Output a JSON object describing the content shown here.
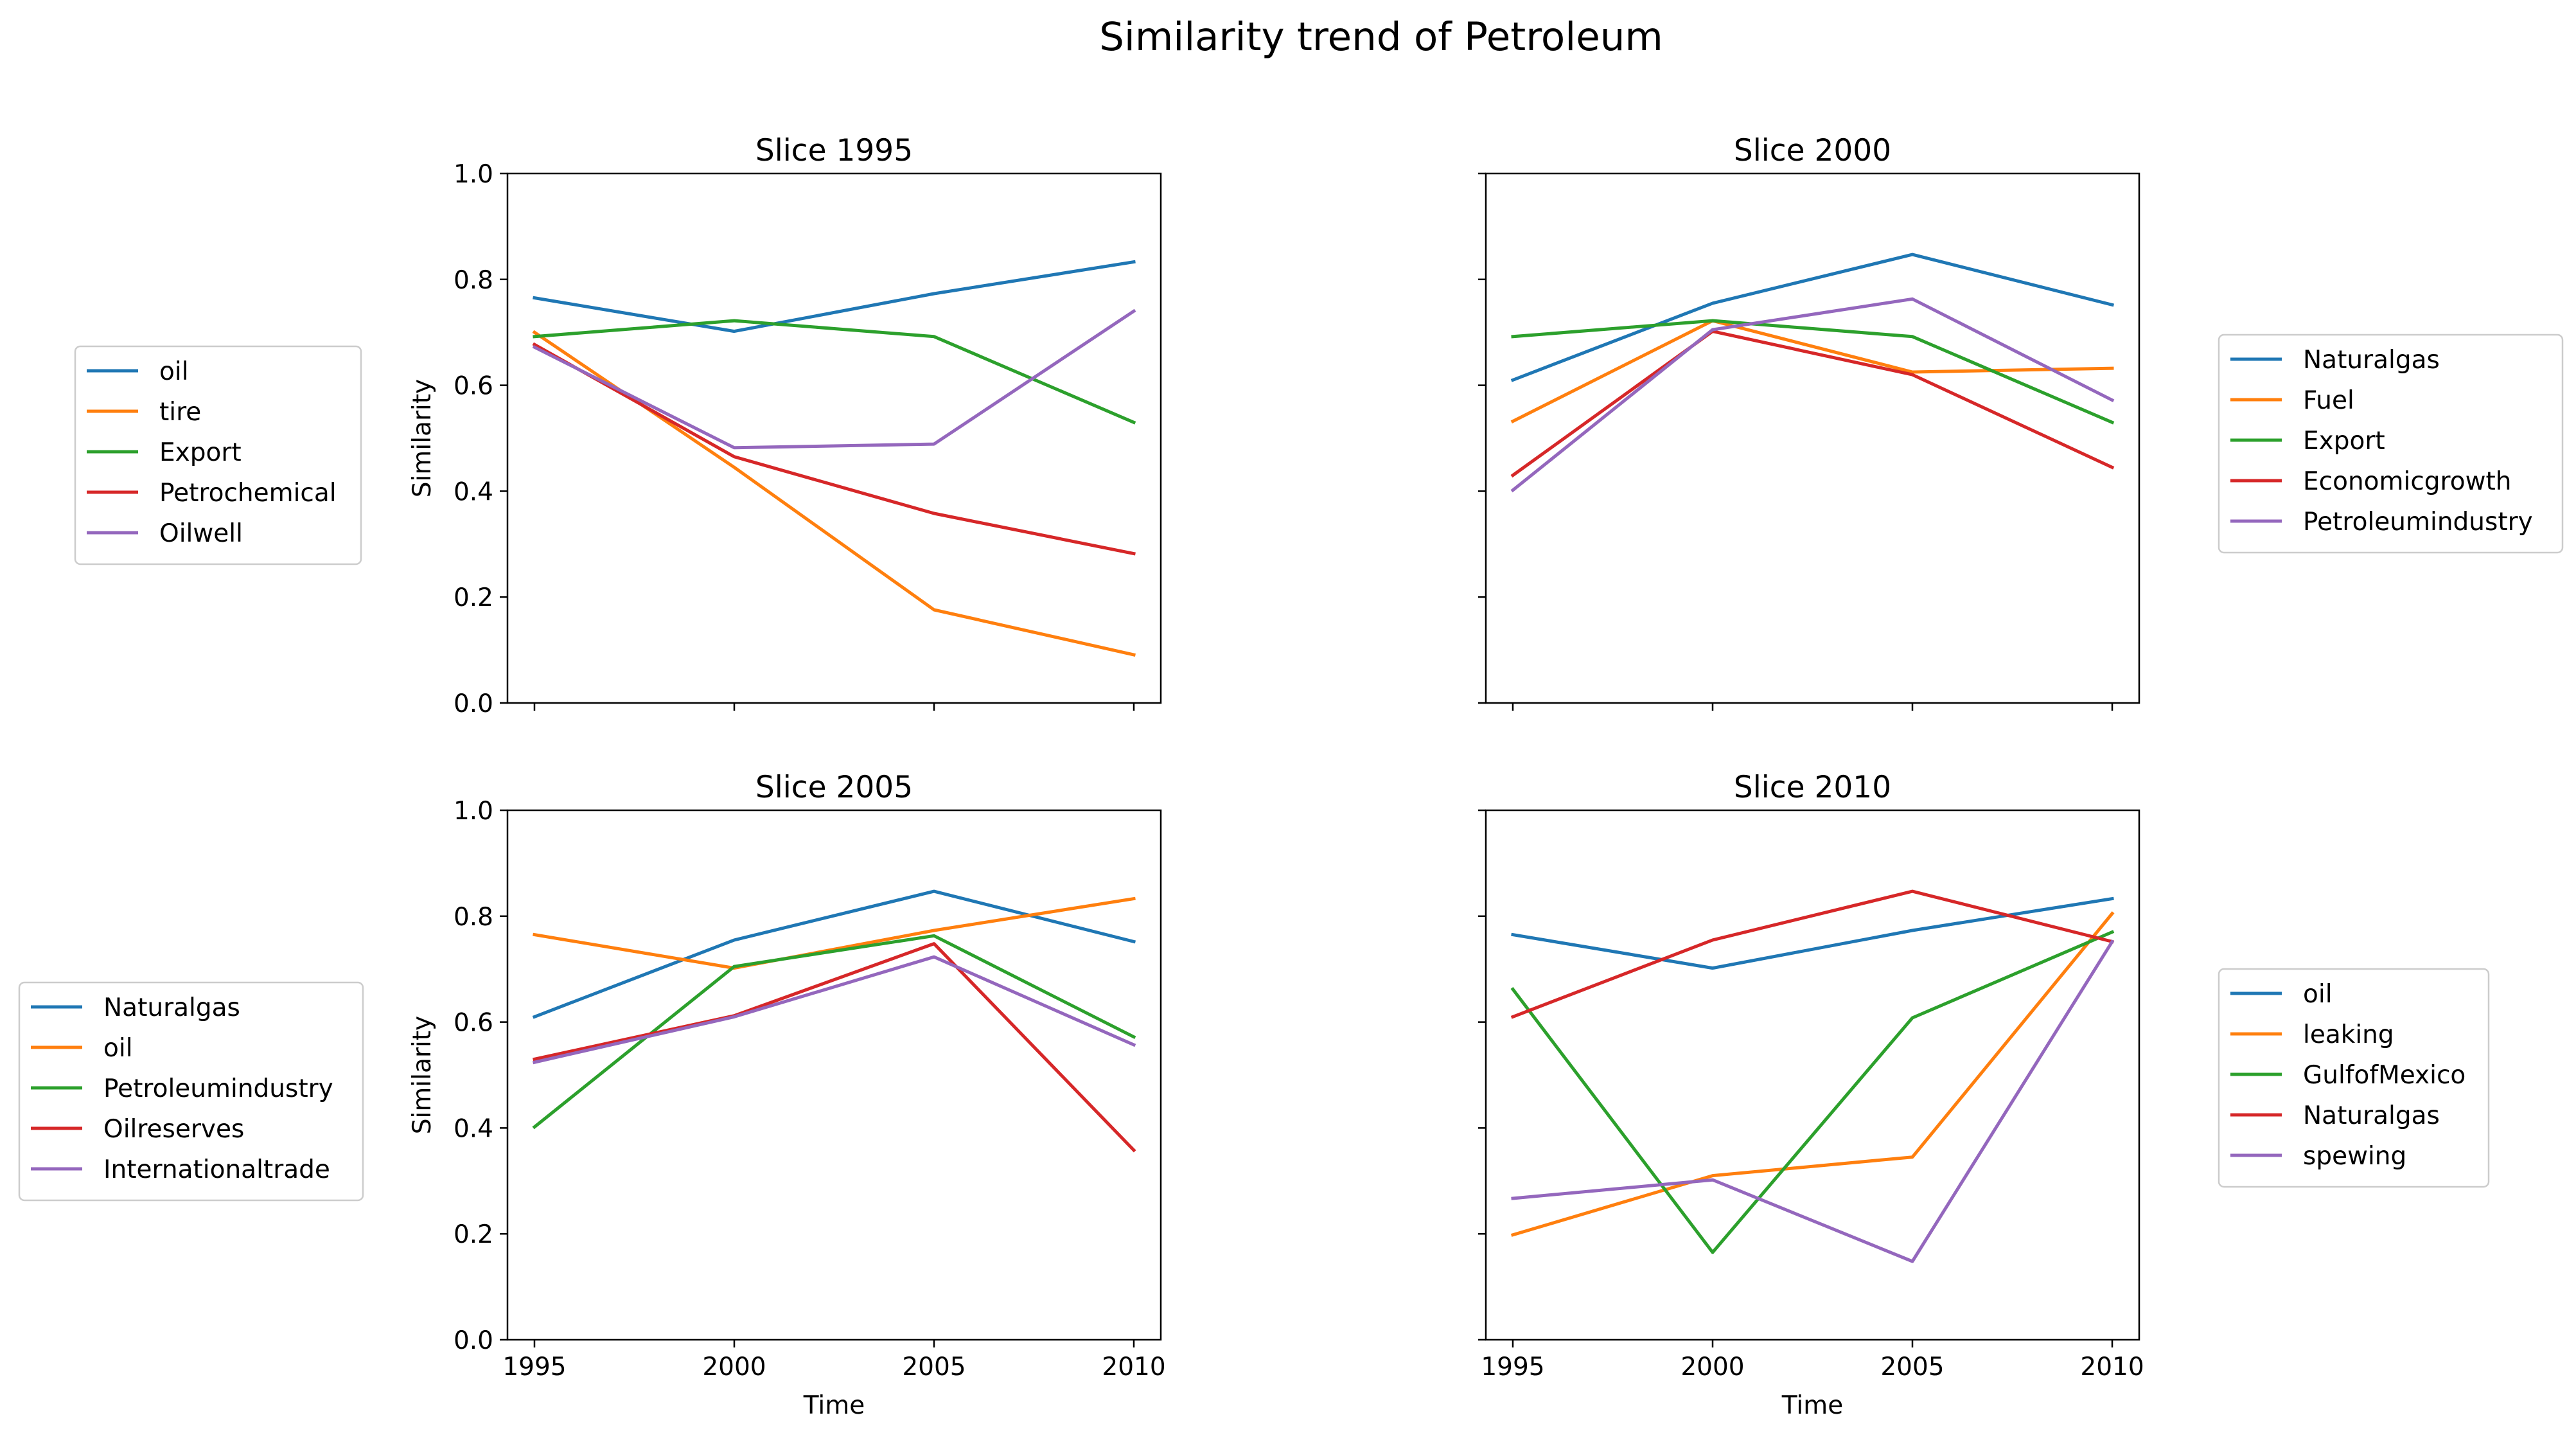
{
  "title": "Similarity trend of Petroleum",
  "colors": [
    "#1f77b4",
    "#ff7f0e",
    "#2ca02c",
    "#d62728",
    "#9467bd"
  ],
  "chart_data": [
    {
      "type": "line",
      "title": "Slice 1995",
      "xlabel": "",
      "ylabel": "Similarity",
      "x": [
        1995,
        2000,
        2005,
        2010
      ],
      "xticks": [
        "1995",
        "2000",
        "2005",
        "2010"
      ],
      "show_xticklabels": false,
      "show_yticklabels": true,
      "yticks": [
        "0.0",
        "0.2",
        "0.4",
        "0.6",
        "0.8",
        "1.0"
      ],
      "ylim": [
        0,
        1
      ],
      "legend_position": "left",
      "series": [
        {
          "name": "oil",
          "values": [
            0.765,
            0.702,
            0.773,
            0.833
          ]
        },
        {
          "name": "tire",
          "values": [
            0.7,
            0.445,
            0.176,
            0.091
          ]
        },
        {
          "name": "Export",
          "values": [
            0.692,
            0.722,
            0.692,
            0.53
          ]
        },
        {
          "name": "Petrochemical",
          "values": [
            0.677,
            0.465,
            0.358,
            0.282
          ]
        },
        {
          "name": "Oilwell",
          "values": [
            0.672,
            0.482,
            0.489,
            0.74
          ]
        }
      ]
    },
    {
      "type": "line",
      "title": "Slice 2000",
      "xlabel": "",
      "ylabel": "",
      "x": [
        1995,
        2000,
        2005,
        2010
      ],
      "xticks": [
        "1995",
        "2000",
        "2005",
        "2010"
      ],
      "show_xticklabels": false,
      "show_yticklabels": false,
      "yticks": [
        "0.0",
        "0.2",
        "0.4",
        "0.6",
        "0.8",
        "1.0"
      ],
      "ylim": [
        0,
        1
      ],
      "legend_position": "right",
      "series": [
        {
          "name": "Naturalgas",
          "values": [
            0.61,
            0.755,
            0.847,
            0.752
          ]
        },
        {
          "name": "Fuel",
          "values": [
            0.532,
            0.722,
            0.625,
            0.632
          ]
        },
        {
          "name": "Export",
          "values": [
            0.692,
            0.722,
            0.692,
            0.53
          ]
        },
        {
          "name": "Economicgrowth",
          "values": [
            0.43,
            0.702,
            0.62,
            0.445
          ]
        },
        {
          "name": "Petroleumindustry",
          "values": [
            0.402,
            0.705,
            0.763,
            0.572
          ]
        }
      ]
    },
    {
      "type": "line",
      "title": "Slice 2005",
      "xlabel": "Time",
      "ylabel": "Similarity",
      "x": [
        1995,
        2000,
        2005,
        2010
      ],
      "xticks": [
        "1995",
        "2000",
        "2005",
        "2010"
      ],
      "show_xticklabels": true,
      "show_yticklabels": true,
      "yticks": [
        "0.0",
        "0.2",
        "0.4",
        "0.6",
        "0.8",
        "1.0"
      ],
      "ylim": [
        0,
        1
      ],
      "legend_position": "left",
      "series": [
        {
          "name": "Naturalgas",
          "values": [
            0.61,
            0.755,
            0.847,
            0.752
          ]
        },
        {
          "name": "oil",
          "values": [
            0.765,
            0.702,
            0.773,
            0.833
          ]
        },
        {
          "name": "Petroleumindustry",
          "values": [
            0.402,
            0.705,
            0.763,
            0.572
          ]
        },
        {
          "name": "Oilreserves",
          "values": [
            0.53,
            0.612,
            0.748,
            0.358
          ]
        },
        {
          "name": "Internationaltrade",
          "values": [
            0.524,
            0.61,
            0.723,
            0.557
          ]
        }
      ]
    },
    {
      "type": "line",
      "title": "Slice 2010",
      "xlabel": "Time",
      "ylabel": "",
      "x": [
        1995,
        2000,
        2005,
        2010
      ],
      "xticks": [
        "1995",
        "2000",
        "2005",
        "2010"
      ],
      "show_xticklabels": true,
      "show_yticklabels": false,
      "yticks": [
        "0.0",
        "0.2",
        "0.4",
        "0.6",
        "0.8",
        "1.0"
      ],
      "ylim": [
        0,
        1
      ],
      "legend_position": "right",
      "series": [
        {
          "name": "oil",
          "values": [
            0.765,
            0.702,
            0.773,
            0.833
          ]
        },
        {
          "name": "leaking",
          "values": [
            0.198,
            0.31,
            0.345,
            0.805
          ]
        },
        {
          "name": "GulfofMexico",
          "values": [
            0.662,
            0.165,
            0.608,
            0.77
          ]
        },
        {
          "name": "Naturalgas",
          "values": [
            0.61,
            0.755,
            0.847,
            0.752
          ]
        },
        {
          "name": "spewing",
          "values": [
            0.267,
            0.302,
            0.148,
            0.752
          ]
        }
      ]
    }
  ]
}
